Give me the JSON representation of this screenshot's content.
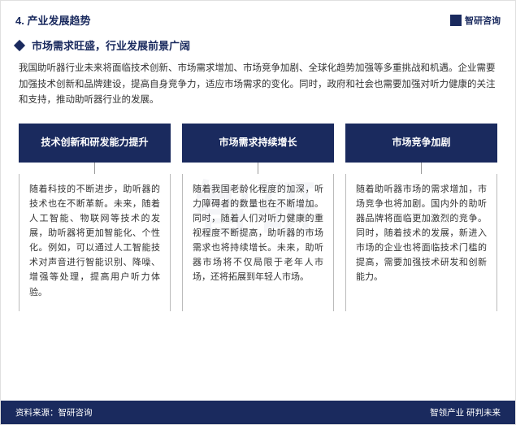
{
  "colors": {
    "primary": "#1a2a5e",
    "text": "#333333",
    "border": "#bbbbbb",
    "watermark": "rgba(180,190,210,0.15)"
  },
  "header": {
    "section_number": "4. ",
    "section_title": "产业发展趋势",
    "brand": "智研咨询"
  },
  "subtitle": "市场需求旺盛，行业发展前景广阔",
  "intro": "我国助听器行业未来将面临技术创新、市场需求增加、市场竞争加剧、全球化趋势加强等多重挑战和机遇。企业需要加强技术创新和品牌建设，提高自身竞争力，适应市场需求的变化。同时，政府和社会也需要加强对听力健康的关注和支持，推动助听器行业的发展。",
  "cards": [
    {
      "title": "技术创新和研发能力提升",
      "body": "随着科技的不断进步，助听器的技术也在不断革新。未来，随着人工智能、物联网等技术的发展，助听器将更加智能化、个性化。例如，可以通过人工智能技术对声音进行智能识别、降噪、增强等处理，提高用户听力体验。"
    },
    {
      "title": "市场需求持续增长",
      "body": "随着我国老龄化程度的加深，听力障碍者的数量也在不断增加。同时，随着人们对听力健康的重视程度不断提高，助听器的市场需求也将持续增长。未来，助听器市场将不仅局限于老年人市场，还将拓展到年轻人市场。"
    },
    {
      "title": "市场竞争加剧",
      "body": "随着助听器市场的需求增加，市场竞争也将加剧。国内外的助听器品牌将面临更加激烈的竞争。同时，随着技术的发展，新进入市场的企业也将面临技术门槛的提高，需要加强技术研发和创新能力。"
    }
  ],
  "footer": {
    "source_label": "资料来源：",
    "source": "智研咨询",
    "tagline": "智领产业 研判未来"
  },
  "watermark": "智研"
}
